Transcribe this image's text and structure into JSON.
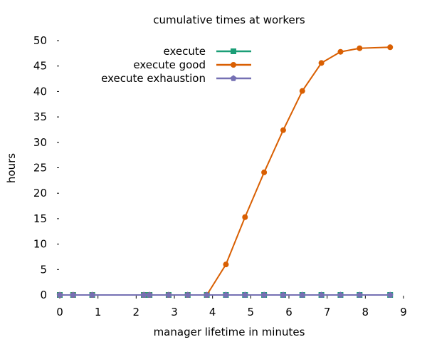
{
  "chart_data": {
    "type": "line",
    "title": "cumulative times at workers",
    "xlabel": "manager lifetime in minutes",
    "ylabel": "hours",
    "xlim": [
      0,
      9
    ],
    "ylim": [
      0,
      50
    ],
    "x_ticks": [
      "0",
      "1",
      "2",
      "3",
      "4",
      "5",
      "6",
      "7",
      "8",
      "9"
    ],
    "y_ticks": [
      "0",
      "5",
      "10",
      "15",
      "20",
      "25",
      "30",
      "35",
      "40",
      "45",
      "50"
    ],
    "grid": false,
    "legend_position": "top-right",
    "series": [
      {
        "name": "execute",
        "color": "#1b9e77",
        "marker": "square",
        "x": [
          0,
          0.35,
          0.85,
          2.2,
          2.35,
          2.85,
          3.35,
          3.85,
          4.35,
          4.85,
          5.35,
          5.85,
          6.35,
          6.85,
          7.35,
          7.85,
          8.65
        ],
        "y": [
          0,
          0,
          0,
          0,
          0,
          0,
          0,
          0,
          0,
          0,
          0,
          0,
          0,
          0,
          0,
          0,
          0
        ]
      },
      {
        "name": "execute good",
        "color": "#d95f02",
        "marker": "circle",
        "x": [
          0,
          0.35,
          0.85,
          2.2,
          2.35,
          2.85,
          3.35,
          3.85,
          4.35,
          4.85,
          5.35,
          5.85,
          6.35,
          6.85,
          7.35,
          7.85,
          8.65
        ],
        "y": [
          0,
          0,
          0,
          0,
          0,
          0,
          0,
          0,
          6,
          15.3,
          24.1,
          32.4,
          40.1,
          45.6,
          47.8,
          48.5,
          48.7
        ]
      },
      {
        "name": "execute exhaustion",
        "color": "#7570b3",
        "marker": "pentagon",
        "x": [
          0,
          0.35,
          0.85,
          2.2,
          2.35,
          2.85,
          3.35,
          3.85,
          4.35,
          4.85,
          5.35,
          5.85,
          6.35,
          6.85,
          7.35,
          7.85,
          8.65
        ],
        "y": [
          0,
          0,
          0,
          0,
          0,
          0,
          0,
          0,
          0,
          0,
          0,
          0,
          0,
          0,
          0,
          0,
          0
        ]
      }
    ]
  }
}
